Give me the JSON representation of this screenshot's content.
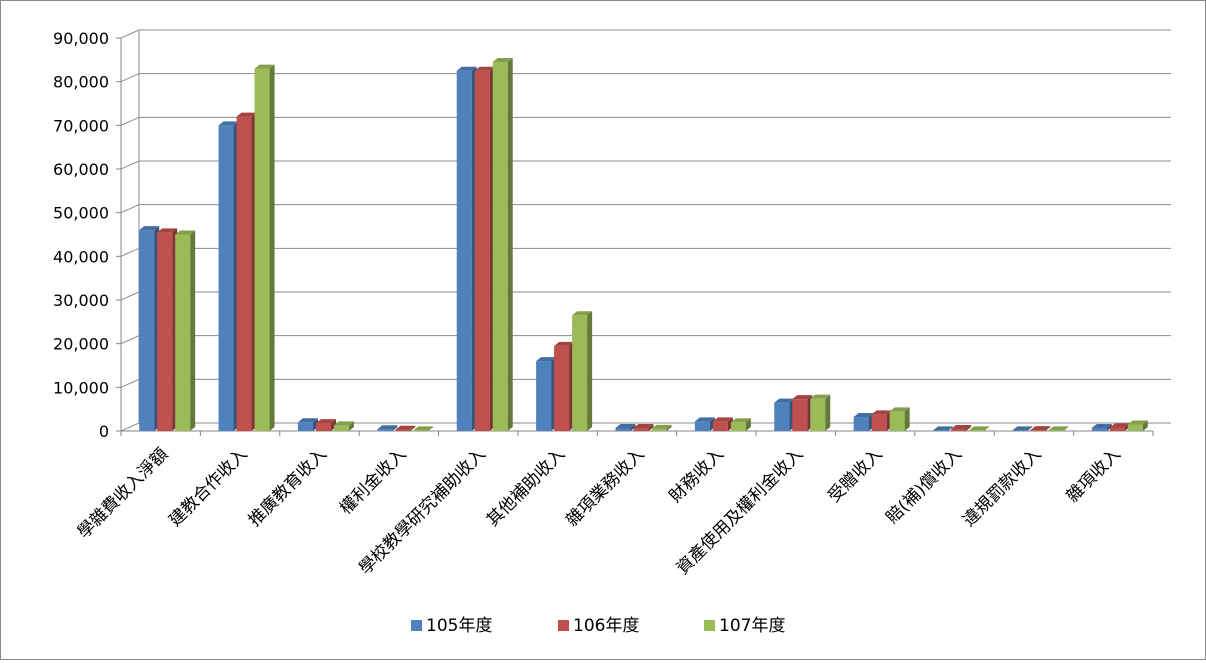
{
  "chart_data": {
    "type": "bar",
    "title": "",
    "xlabel": "",
    "ylabel": "",
    "ylim": [
      0,
      90000
    ],
    "yticks": [
      0,
      10000,
      20000,
      30000,
      40000,
      50000,
      60000,
      70000,
      80000,
      90000
    ],
    "ytick_labels": [
      "0",
      "10,000",
      "20,000",
      "30,000",
      "40,000",
      "50,000",
      "60,000",
      "70,000",
      "80,000",
      "90,000"
    ],
    "grid": true,
    "legend_position": "bottom",
    "categories": [
      "學雜費收入淨額",
      "建教合作收入",
      "推廣教育收入",
      "權利金收入",
      "學校教學研究補助收入",
      "其他補助收入",
      "雜項業務收入",
      "財務收入",
      "資產使用及權利金收入",
      "受贈收入",
      "賠(補)償收入",
      "違規罰款收入",
      "雜項收入"
    ],
    "series": [
      {
        "name": "105年度",
        "color": "#4f81bd",
        "values": [
          46000,
          70000,
          2000,
          400,
          82500,
          16000,
          700,
          2200,
          6500,
          3200,
          150,
          150,
          700
        ]
      },
      {
        "name": "106年度",
        "color": "#c0504d",
        "values": [
          45500,
          72000,
          1800,
          300,
          82500,
          19500,
          700,
          2200,
          7300,
          3800,
          450,
          200,
          800
        ]
      },
      {
        "name": "107年度",
        "color": "#9bbb59",
        "values": [
          45000,
          83000,
          1300,
          150,
          84500,
          26500,
          500,
          2000,
          7400,
          4500,
          150,
          150,
          1500
        ]
      }
    ]
  }
}
